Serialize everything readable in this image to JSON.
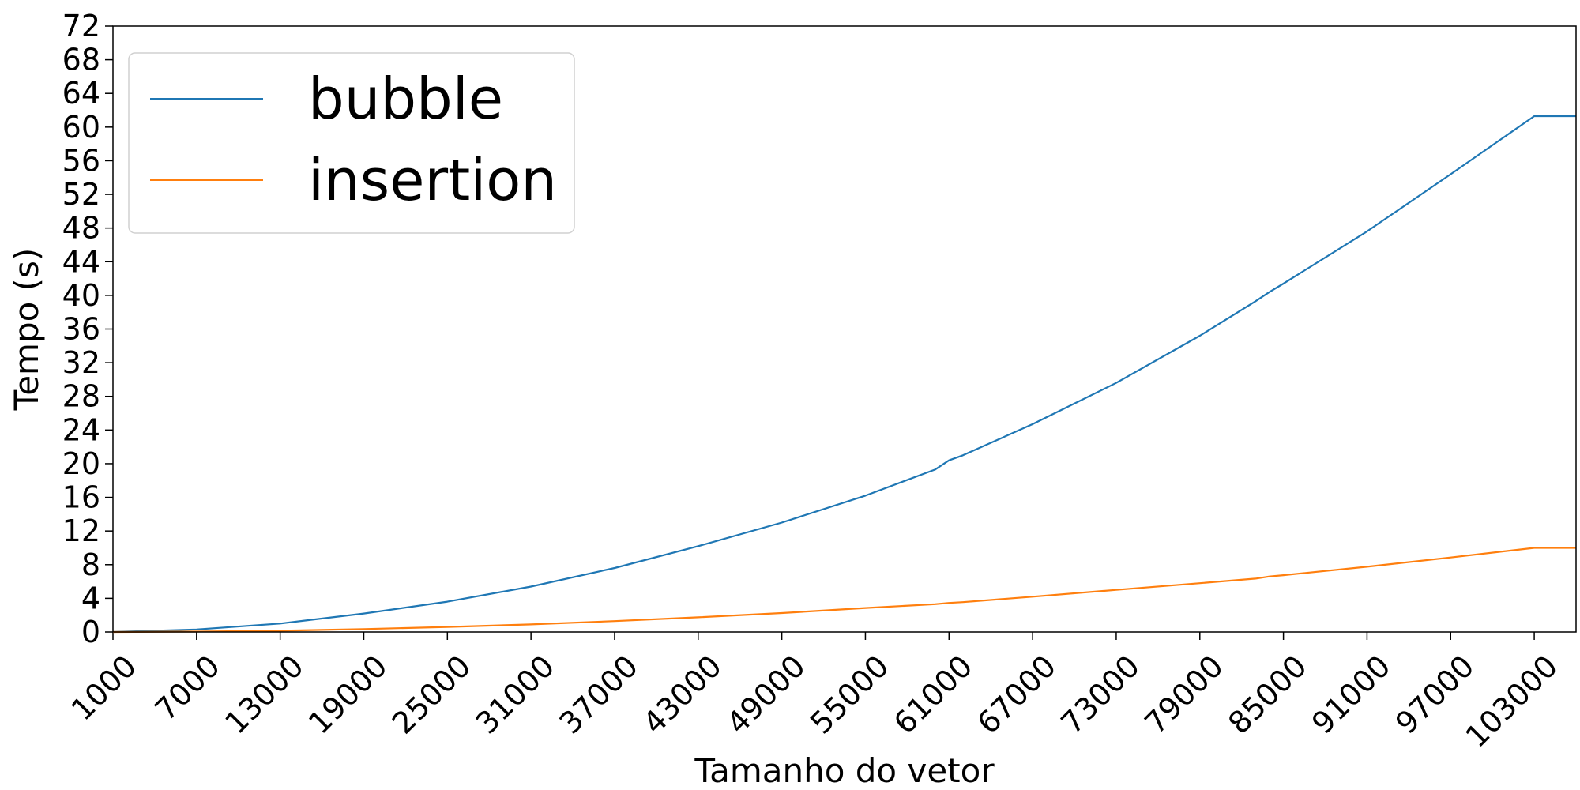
{
  "chart_data": {
    "type": "line",
    "xlabel": "Tamanho do vetor",
    "ylabel": "Tempo (s)",
    "xlim": [
      1000,
      106000
    ],
    "ylim": [
      0,
      72
    ],
    "xticks": [
      1000,
      7000,
      13000,
      19000,
      25000,
      31000,
      37000,
      43000,
      49000,
      55000,
      61000,
      67000,
      73000,
      79000,
      85000,
      91000,
      97000,
      103000
    ],
    "xtick_labels": [
      "1000",
      "7000",
      "13000",
      "19000",
      "25000",
      "31000",
      "37000",
      "43000",
      "49000",
      "55000",
      "61000",
      "67000",
      "73000",
      "79000",
      "85000",
      "91000",
      "97000",
      "103000"
    ],
    "yticks": [
      0,
      4,
      8,
      12,
      16,
      20,
      24,
      28,
      32,
      36,
      40,
      44,
      48,
      52,
      56,
      60,
      64,
      68,
      72
    ],
    "ytick_labels": [
      "0",
      "4",
      "8",
      "12",
      "16",
      "20",
      "24",
      "28",
      "32",
      "36",
      "40",
      "44",
      "48",
      "52",
      "56",
      "60",
      "64",
      "68",
      "72"
    ],
    "grid": false,
    "legend_position": "top-left",
    "x": [
      1000,
      7000,
      13000,
      19000,
      25000,
      31000,
      37000,
      43000,
      49000,
      55000,
      60000,
      61000,
      62000,
      67000,
      73000,
      79000,
      83000,
      84000,
      85000,
      91000,
      97000,
      103000,
      106000
    ],
    "series": [
      {
        "name": "bubble",
        "color": "#1f77b4",
        "values": [
          0.0,
          0.3,
          1.0,
          2.2,
          3.6,
          5.4,
          7.6,
          10.2,
          13.0,
          16.2,
          19.3,
          20.4,
          21.0,
          24.7,
          29.6,
          35.2,
          39.3,
          40.4,
          41.4,
          47.6,
          54.4,
          61.3,
          61.3
        ]
      },
      {
        "name": "insertion",
        "color": "#ff7f0e",
        "values": [
          0.0,
          0.05,
          0.15,
          0.35,
          0.6,
          0.9,
          1.3,
          1.75,
          2.25,
          2.85,
          3.3,
          3.45,
          3.55,
          4.2,
          5.0,
          5.8,
          6.35,
          6.6,
          6.75,
          7.75,
          8.85,
          10.0,
          10.0
        ]
      }
    ]
  }
}
